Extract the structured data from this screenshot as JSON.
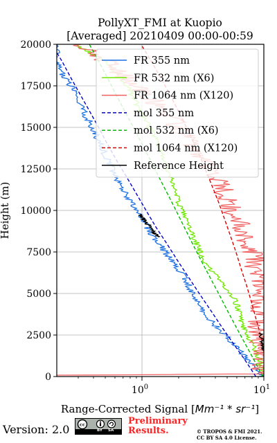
{
  "chart_data": {
    "type": "line",
    "title_line1": "PollyXT_FMI at Kuopio",
    "title_line2": "[Averaged] 20210409 00:00-00:59",
    "xlabel_prefix": "Range-Corrected Signal [",
    "xlabel_math": "Mm⁻¹ * sr⁻¹",
    "xlabel_suffix": "]",
    "ylabel": "Height (m)",
    "xscale": "log",
    "xlim": [
      0.2,
      10
    ],
    "ylim": [
      0,
      20000
    ],
    "grid": true,
    "legend_position": "top-right",
    "y_ticks": [
      {
        "value": 0,
        "label": "0"
      },
      {
        "value": 2500,
        "label": "2500"
      },
      {
        "value": 5000,
        "label": "5000"
      },
      {
        "value": 7500,
        "label": "7500"
      },
      {
        "value": 10000,
        "label": "10000"
      },
      {
        "value": 12500,
        "label": "12500"
      },
      {
        "value": 15000,
        "label": "15000"
      },
      {
        "value": 17500,
        "label": "17500"
      },
      {
        "value": 20000,
        "label": "20000"
      }
    ],
    "x_ticks": [
      {
        "value": 1,
        "base": "10",
        "exp": "0"
      },
      {
        "value": 10,
        "base": "10",
        "exp": "1"
      }
    ],
    "series": [
      {
        "name": "FR 355 nm",
        "color": "#1a6fe0",
        "style": "solid",
        "noise": 0.06,
        "points": [
          [
            9.8,
            0
          ],
          [
            8.5,
            500
          ],
          [
            7.4,
            1000
          ],
          [
            6.4,
            1500
          ],
          [
            5.5,
            2000
          ],
          [
            4.8,
            2500
          ],
          [
            4.1,
            3000
          ],
          [
            3.5,
            3500
          ],
          [
            3.1,
            4000
          ],
          [
            2.8,
            4500
          ],
          [
            2.6,
            5000
          ],
          [
            2.4,
            5500
          ],
          [
            2.2,
            6000
          ],
          [
            2.0,
            6500
          ],
          [
            1.75,
            7000
          ],
          [
            1.55,
            7500
          ],
          [
            1.38,
            8000
          ],
          [
            1.22,
            8500
          ],
          [
            1.1,
            9000
          ],
          [
            1.0,
            9500
          ],
          [
            0.9,
            10000
          ],
          [
            0.8,
            10500
          ],
          [
            0.73,
            11000
          ],
          [
            0.67,
            11500
          ],
          [
            0.62,
            12000
          ],
          [
            0.57,
            12500
          ],
          [
            0.53,
            13000
          ],
          [
            0.49,
            13500
          ],
          [
            0.45,
            14000
          ],
          [
            0.42,
            14500
          ],
          [
            0.39,
            15000
          ],
          [
            0.36,
            15500
          ],
          [
            0.33,
            16000
          ],
          [
            0.3,
            16500
          ],
          [
            0.28,
            17000
          ],
          [
            0.26,
            17500
          ],
          [
            0.23,
            18000
          ],
          [
            0.21,
            18500
          ],
          [
            0.2,
            19000
          ],
          [
            0.2,
            20000
          ]
        ]
      },
      {
        "name": "FR 532 nm (X6)",
        "color": "#6fe800",
        "style": "solid",
        "noise": 0.05,
        "points": [
          [
            10,
            300
          ],
          [
            9.5,
            800
          ],
          [
            8.8,
            1300
          ],
          [
            8.2,
            1800
          ],
          [
            7.6,
            2300
          ],
          [
            7.0,
            2800
          ],
          [
            6.5,
            3300
          ],
          [
            6.3,
            3800
          ],
          [
            6.0,
            4300
          ],
          [
            5.6,
            4800
          ],
          [
            5.0,
            5300
          ],
          [
            4.3,
            5800
          ],
          [
            3.8,
            6300
          ],
          [
            3.4,
            6800
          ],
          [
            3.1,
            7300
          ],
          [
            2.9,
            7800
          ],
          [
            2.7,
            8300
          ],
          [
            2.5,
            8800
          ],
          [
            2.3,
            9300
          ],
          [
            2.2,
            9800
          ],
          [
            2.05,
            10300
          ],
          [
            1.95,
            10800
          ],
          [
            1.85,
            11300
          ],
          [
            1.75,
            11800
          ],
          [
            1.65,
            12300
          ],
          [
            1.6,
            12800
          ],
          [
            1.5,
            13300
          ],
          [
            1.4,
            13800
          ],
          [
            1.3,
            14300
          ],
          [
            1.2,
            14800
          ],
          [
            1.1,
            15300
          ],
          [
            1.0,
            15800
          ],
          [
            0.92,
            16300
          ],
          [
            0.85,
            16800
          ],
          [
            0.78,
            17300
          ],
          [
            0.7,
            17800
          ],
          [
            0.62,
            18300
          ],
          [
            0.52,
            18800
          ],
          [
            0.42,
            19300
          ],
          [
            0.34,
            19700
          ],
          [
            0.28,
            20000
          ]
        ]
      },
      {
        "name": "FR 1064 nm (X120)",
        "color": "#f06060",
        "style": "solid",
        "noise": 0.18,
        "points": [
          [
            0.2,
            80
          ],
          [
            10,
            160
          ],
          [
            9.6,
            500
          ],
          [
            9.3,
            1000
          ],
          [
            9.5,
            1500
          ],
          [
            9.0,
            2000
          ],
          [
            9.4,
            2500
          ],
          [
            8.8,
            3000
          ],
          [
            9.2,
            3500
          ],
          [
            9.6,
            4000
          ],
          [
            8.9,
            4500
          ],
          [
            9.3,
            5000
          ],
          [
            8.7,
            5500
          ],
          [
            9.0,
            6000
          ],
          [
            8.4,
            6500
          ],
          [
            8.8,
            7000
          ],
          [
            8.0,
            7500
          ],
          [
            7.5,
            8000
          ],
          [
            7.0,
            8500
          ],
          [
            6.6,
            9000
          ],
          [
            6.0,
            9500
          ],
          [
            5.6,
            10000
          ],
          [
            5.1,
            10500
          ],
          [
            4.8,
            11000
          ],
          [
            4.5,
            11500
          ],
          [
            4.0,
            12000
          ],
          [
            3.6,
            12500
          ],
          [
            3.3,
            13000
          ],
          [
            3.0,
            13500
          ],
          [
            2.6,
            14000
          ],
          [
            2.3,
            14500
          ],
          [
            2.0,
            15000
          ],
          [
            1.8,
            15500
          ],
          [
            1.5,
            16000
          ],
          [
            1.3,
            16500
          ],
          [
            1.1,
            17000
          ],
          [
            0.9,
            17500
          ],
          [
            0.75,
            18000
          ],
          [
            0.6,
            18500
          ],
          [
            0.5,
            19000
          ],
          [
            0.4,
            19500
          ],
          [
            0.32,
            20000
          ]
        ]
      },
      {
        "name": "mol 355 nm",
        "color": "#0000cc",
        "style": "dashed",
        "points": [
          [
            8.6,
            0
          ],
          [
            7.0,
            1000
          ],
          [
            5.6,
            2000
          ],
          [
            4.5,
            3000
          ],
          [
            3.65,
            4000
          ],
          [
            2.95,
            5000
          ],
          [
            2.4,
            6000
          ],
          [
            1.95,
            7000
          ],
          [
            1.6,
            8000
          ],
          [
            1.3,
            9000
          ],
          [
            1.08,
            10000
          ],
          [
            0.9,
            11000
          ],
          [
            0.75,
            12000
          ],
          [
            0.62,
            13000
          ],
          [
            0.52,
            14000
          ],
          [
            0.44,
            15000
          ],
          [
            0.37,
            16000
          ],
          [
            0.31,
            17000
          ],
          [
            0.26,
            18000
          ],
          [
            0.22,
            19000
          ],
          [
            0.2,
            19500
          ]
        ]
      },
      {
        "name": "mol 532 nm (X6)",
        "color": "#00bb00",
        "style": "dashed",
        "points": [
          [
            9.8,
            0
          ],
          [
            8.3,
            1000
          ],
          [
            7.0,
            2000
          ],
          [
            5.9,
            3000
          ],
          [
            5.0,
            4000
          ],
          [
            4.25,
            5000
          ],
          [
            3.6,
            6000
          ],
          [
            3.05,
            7000
          ],
          [
            2.6,
            8000
          ],
          [
            2.22,
            9000
          ],
          [
            1.9,
            10000
          ],
          [
            1.62,
            11000
          ],
          [
            1.38,
            12000
          ],
          [
            1.18,
            13000
          ],
          [
            1.0,
            14000
          ],
          [
            0.85,
            15000
          ],
          [
            0.72,
            16000
          ],
          [
            0.61,
            17000
          ],
          [
            0.52,
            18000
          ],
          [
            0.44,
            19000
          ],
          [
            0.37,
            20000
          ]
        ]
      },
      {
        "name": "mol 1064 nm (X120)",
        "color": "#dd0000",
        "style": "dashed",
        "points": [
          [
            10,
            1500
          ],
          [
            9.4,
            2500
          ],
          [
            8.6,
            3500
          ],
          [
            7.9,
            4500
          ],
          [
            7.2,
            5500
          ],
          [
            6.5,
            6500
          ],
          [
            5.9,
            7500
          ],
          [
            5.3,
            8500
          ],
          [
            4.75,
            9500
          ],
          [
            4.25,
            10500
          ],
          [
            3.75,
            11500
          ],
          [
            3.3,
            12500
          ],
          [
            2.9,
            13500
          ],
          [
            2.5,
            14500
          ],
          [
            2.15,
            15500
          ],
          [
            1.83,
            16500
          ],
          [
            1.55,
            17500
          ],
          [
            1.3,
            18500
          ],
          [
            1.08,
            19500
          ],
          [
            0.98,
            20000
          ]
        ]
      },
      {
        "name": "Reference Height",
        "color": "#000000",
        "style": "solid",
        "noise": 0.04,
        "points": [
          [
            0.95,
            9800
          ],
          [
            1.0,
            9600
          ],
          [
            1.05,
            9400
          ],
          [
            1.1,
            9200
          ],
          [
            1.16,
            9000
          ],
          [
            1.22,
            8800
          ],
          [
            1.28,
            8600
          ],
          [
            1.36,
            8400
          ]
        ],
        "extra_points": [
          [
            9.5,
            2600
          ],
          [
            9.7,
            2200
          ],
          [
            9.9,
            1800
          ],
          [
            10,
            1500
          ]
        ]
      }
    ]
  },
  "footer": {
    "version": "Version: 2.0",
    "badge_bottom": [
      "BY",
      "SA"
    ],
    "prelim_line1": "Preliminary",
    "prelim_line2": "Results.",
    "copyright_line1": "© TROPOS & FMI 2021.",
    "copyright_line2": "CC BY SA 4.0 License."
  }
}
